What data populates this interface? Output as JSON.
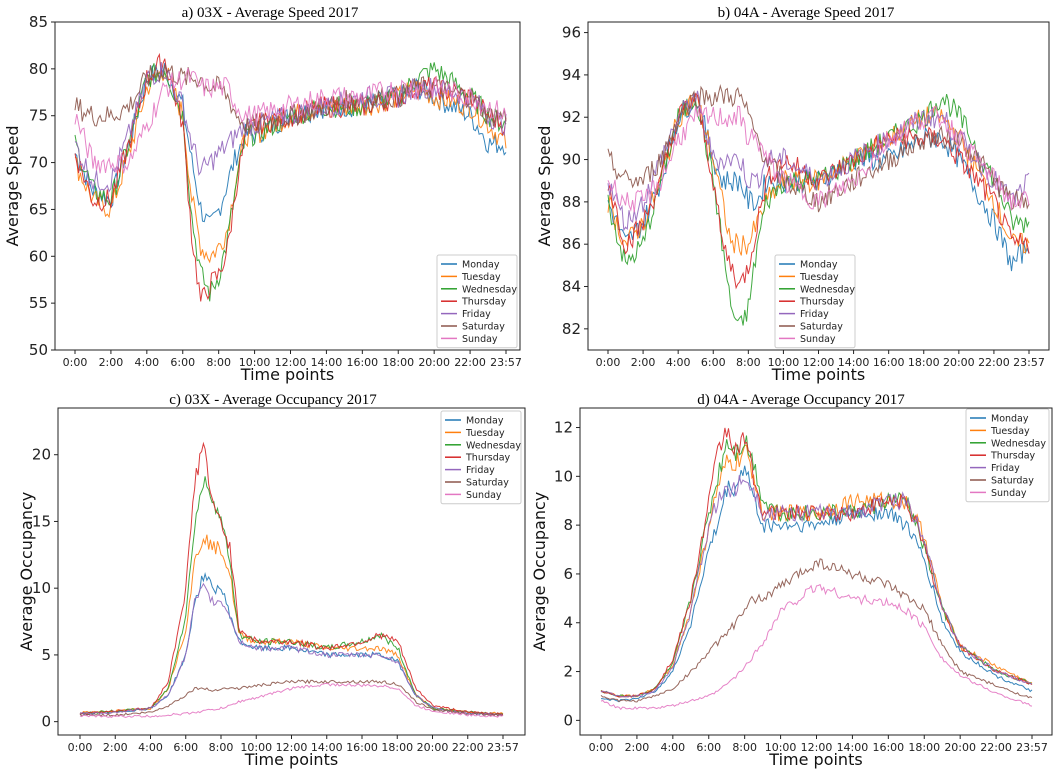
{
  "palette": {
    "Monday": "#1f77b4",
    "Tuesday": "#ff7f0e",
    "Wednesday": "#2ca02c",
    "Thursday": "#d62728",
    "Friday": "#9467bd",
    "Saturday": "#8c564b",
    "Sunday": "#e377c2"
  },
  "chart_data": [
    {
      "id": "a",
      "type": "line",
      "title": "a) 03X - Average Speed 2017",
      "xlabel": "Time points",
      "ylabel": "Average Speed",
      "xticks": [
        "0:00",
        "2:00",
        "4:00",
        "6:00",
        "8:00",
        "10:00",
        "12:00",
        "14:00",
        "16:00",
        "18:00",
        "20:00",
        "22:00",
        "23:57"
      ],
      "yticks": [
        50,
        55,
        60,
        65,
        70,
        75,
        80,
        85
      ],
      "ylim": [
        50,
        85
      ],
      "legend_position": "lower-right",
      "series_hours": [
        0,
        1,
        2,
        3,
        4,
        5,
        6,
        6.5,
        7,
        7.5,
        8,
        8.5,
        9,
        9.5,
        10,
        12,
        14,
        16,
        18,
        19,
        20,
        22,
        23,
        23.95
      ],
      "series": [
        {
          "name": "Monday",
          "values": [
            71,
            67,
            66,
            72,
            79,
            80,
            76,
            70,
            65,
            63,
            65,
            68,
            71,
            73,
            73,
            75,
            76,
            76,
            77,
            78,
            77,
            75,
            72,
            72
          ]
        },
        {
          "name": "Tuesday",
          "values": [
            70,
            66,
            65,
            71,
            78,
            80,
            75,
            66,
            61,
            60,
            61,
            63,
            69,
            73,
            73,
            75,
            76,
            76,
            77,
            78,
            77,
            76,
            74,
            72
          ]
        },
        {
          "name": "Wednesday",
          "values": [
            72,
            67,
            66,
            72,
            79,
            80,
            75,
            64,
            58,
            56,
            58,
            62,
            68,
            73,
            73,
            75,
            76,
            76,
            77,
            79,
            80,
            77,
            75,
            74
          ]
        },
        {
          "name": "Thursday",
          "values": [
            71,
            66,
            66,
            72,
            79,
            81,
            74,
            62,
            55,
            57,
            58,
            61,
            68,
            73,
            74,
            75,
            76,
            76,
            77,
            78,
            78,
            77,
            75,
            74
          ]
        },
        {
          "name": "Friday",
          "values": [
            72,
            68,
            68,
            73,
            79,
            80,
            76,
            72,
            69,
            70,
            71,
            72,
            73,
            74,
            74,
            75,
            76,
            77,
            77,
            78,
            78,
            77,
            75,
            74
          ]
        },
        {
          "name": "Saturday",
          "values": [
            76,
            75,
            75,
            76,
            79,
            80,
            79,
            79,
            79,
            78,
            78,
            77,
            75,
            74,
            74,
            75,
            76,
            77,
            77,
            78,
            78,
            77,
            75,
            75
          ]
        },
        {
          "name": "Sunday",
          "values": [
            75,
            70,
            70,
            70,
            74,
            78,
            79,
            79,
            78,
            78,
            78,
            78,
            76,
            75,
            75,
            76,
            77,
            77,
            78,
            78,
            78,
            77,
            76,
            75
          ]
        }
      ]
    },
    {
      "id": "b",
      "type": "line",
      "title": "b) 04A - Average Speed 2017",
      "xlabel": "Time points",
      "ylabel": "Average Speed",
      "xticks": [
        "0:00",
        "2:00",
        "4:00",
        "6:00",
        "8:00",
        "10:00",
        "12:00",
        "14:00",
        "16:00",
        "18:00",
        "20:00",
        "22:00",
        "23:57"
      ],
      "yticks": [
        82,
        84,
        86,
        88,
        90,
        92,
        94,
        96
      ],
      "ylim": [
        81,
        96.5
      ],
      "legend_position": "lower-center",
      "series_hours": [
        0,
        1,
        2,
        3,
        4,
        5,
        6,
        6.5,
        7,
        7.5,
        8,
        8.5,
        9,
        10,
        12,
        14,
        16,
        18,
        19,
        20,
        22,
        23,
        23.95
      ],
      "series": [
        {
          "name": "Monday",
          "values": [
            88,
            86,
            87,
            89,
            92,
            93,
            90,
            89,
            89,
            89,
            88,
            88,
            89,
            89,
            89,
            90,
            90,
            91,
            91,
            90,
            87,
            85,
            86
          ]
        },
        {
          "name": "Tuesday",
          "values": [
            88,
            86,
            87,
            89,
            92,
            93,
            90,
            88,
            86,
            86,
            86,
            87,
            88,
            89,
            89,
            90,
            91,
            92,
            92,
            91,
            88,
            86,
            86
          ]
        },
        {
          "name": "Wednesday",
          "values": [
            88,
            85,
            86,
            89,
            92,
            93,
            89,
            86,
            83,
            82,
            83,
            86,
            88,
            89,
            89,
            90,
            91,
            92,
            93,
            92,
            89,
            87,
            87
          ]
        },
        {
          "name": "Thursday",
          "values": [
            89,
            86,
            87,
            89,
            92,
            93,
            89,
            86,
            85,
            84,
            85,
            87,
            89,
            90,
            89,
            90,
            91,
            91,
            91,
            90,
            88,
            86,
            86
          ]
        },
        {
          "name": "Friday",
          "values": [
            89,
            87,
            88,
            90,
            92,
            93,
            90,
            90,
            90,
            90,
            89,
            89,
            90,
            90,
            89,
            90,
            91,
            92,
            92,
            91,
            89,
            88,
            89
          ]
        },
        {
          "name": "Saturday",
          "values": [
            90,
            89,
            89,
            90,
            92,
            93,
            93,
            93,
            93,
            93,
            92,
            91,
            90,
            89,
            88,
            89,
            90,
            91,
            91,
            91,
            89,
            88,
            88
          ]
        },
        {
          "name": "Sunday",
          "values": [
            89,
            88,
            88,
            89,
            91,
            92,
            92,
            92,
            92,
            92,
            91,
            91,
            90,
            89,
            88,
            89,
            91,
            92,
            92,
            91,
            89,
            88,
            88
          ]
        }
      ]
    },
    {
      "id": "c",
      "type": "line",
      "title": "c) 03X - Average Occupancy 2017",
      "xlabel": "Time points",
      "ylabel": "Average Occupancy",
      "xticks": [
        "0:00",
        "2:00",
        "4:00",
        "6:00",
        "8:00",
        "10:00",
        "12:00",
        "14:00",
        "16:00",
        "18:00",
        "20:00",
        "22:00",
        "23:57"
      ],
      "yticks": [
        0,
        5,
        10,
        15,
        20
      ],
      "ylim": [
        -1,
        23.5
      ],
      "legend_position": "upper-right",
      "series_hours": [
        0,
        2,
        4,
        5,
        6,
        6.5,
        7,
        7.5,
        8,
        8.5,
        9,
        10,
        12,
        14,
        16,
        17,
        18,
        19,
        20,
        22,
        23.95
      ],
      "series": [
        {
          "name": "Monday",
          "values": [
            0.6,
            0.7,
            1,
            2,
            5,
            9,
            11,
            10,
            10,
            8,
            6,
            5.5,
            5.5,
            5,
            5,
            5,
            4.5,
            2,
            1,
            0.6,
            0.5
          ]
        },
        {
          "name": "Tuesday",
          "values": [
            0.7,
            0.8,
            1,
            2.5,
            7,
            12,
            14,
            13,
            13,
            11,
            6.5,
            6,
            6,
            5.5,
            5.5,
            5.5,
            5,
            2,
            1,
            0.7,
            0.6
          ]
        },
        {
          "name": "Wednesday",
          "values": [
            0.6,
            0.8,
            1,
            2.5,
            8,
            15,
            18,
            17,
            15,
            12,
            6.5,
            6,
            6,
            5.5,
            6,
            6.5,
            5.5,
            2,
            1,
            0.7,
            0.6
          ]
        },
        {
          "name": "Thursday",
          "values": [
            0.6,
            0.8,
            1,
            3,
            10,
            18,
            21,
            16,
            15,
            13,
            7,
            6,
            6,
            5.5,
            6,
            6.5,
            6,
            2.5,
            1.2,
            0.7,
            0.6
          ]
        },
        {
          "name": "Friday",
          "values": [
            0.6,
            0.7,
            1,
            2,
            5,
            9,
            10,
            9,
            9,
            8,
            6,
            5.5,
            5.5,
            5,
            5,
            5,
            4.5,
            2,
            1,
            0.6,
            0.5
          ]
        },
        {
          "name": "Saturday",
          "values": [
            0.5,
            0.5,
            0.7,
            1.2,
            2,
            2.5,
            2.5,
            2.3,
            2.5,
            2.5,
            2.5,
            2.7,
            3,
            3,
            3,
            3,
            2.8,
            1.5,
            0.9,
            0.6,
            0.5
          ]
        },
        {
          "name": "Sunday",
          "values": [
            0.4,
            0.4,
            0.4,
            0.5,
            0.6,
            0.7,
            0.8,
            0.9,
            1,
            1.2,
            1.5,
            1.8,
            2.5,
            2.8,
            2.7,
            2.7,
            2.5,
            1.2,
            0.8,
            0.5,
            0.4
          ]
        }
      ]
    },
    {
      "id": "d",
      "type": "line",
      "title": "d) 04A - Average Occupancy 2017",
      "xlabel": "Time points",
      "ylabel": "Average Occupancy",
      "xticks": [
        "0:00",
        "2:00",
        "4:00",
        "6:00",
        "8:00",
        "10:00",
        "12:00",
        "14:00",
        "16:00",
        "18:00",
        "20:00",
        "22:00",
        "23:57"
      ],
      "yticks": [
        0,
        2,
        4,
        6,
        8,
        10,
        12
      ],
      "ylim": [
        -0.6,
        12.8
      ],
      "legend_position": "upper-right",
      "series_hours": [
        0,
        1,
        2,
        3,
        4,
        5,
        6,
        6.5,
        7,
        7.5,
        8,
        8.5,
        9,
        10,
        12,
        14,
        16,
        17,
        18,
        19,
        20,
        22,
        23.95
      ],
      "series": [
        {
          "name": "Monday",
          "values": [
            0.9,
            0.8,
            0.9,
            1.2,
            2,
            4,
            7,
            8,
            9.5,
            9.5,
            10.5,
            9,
            8,
            8,
            8,
            8.5,
            8.5,
            8,
            6.5,
            4,
            2.8,
            1.8,
            1.2
          ]
        },
        {
          "name": "Tuesday",
          "values": [
            1.2,
            1,
            1,
            1.3,
            2.3,
            4.5,
            8,
            9.5,
            10.5,
            10.5,
            11,
            10,
            8.5,
            8.5,
            8.5,
            9,
            9,
            9,
            7.5,
            4.5,
            3,
            2.2,
            1.5
          ]
        },
        {
          "name": "Wednesday",
          "values": [
            1.2,
            1,
            1,
            1.3,
            2.3,
            5,
            8.5,
            10,
            11.5,
            11,
            11.5,
            10.5,
            9,
            8.5,
            8.5,
            8.5,
            9,
            9,
            7,
            4.5,
            3,
            2,
            1.5
          ]
        },
        {
          "name": "Thursday",
          "values": [
            1.2,
            1,
            1,
            1.3,
            2.5,
            5,
            9,
            11,
            12,
            11,
            11.5,
            10,
            8.5,
            8.5,
            8.5,
            8.5,
            9,
            9,
            7,
            4.5,
            3,
            2,
            1.5
          ]
        },
        {
          "name": "Friday",
          "values": [
            1.2,
            1,
            1,
            1.2,
            2.2,
            4.5,
            8,
            9,
            9.5,
            9.5,
            10,
            9.5,
            8.5,
            8.5,
            8.5,
            8.5,
            9,
            9,
            7.5,
            4.5,
            3,
            2,
            1.5
          ]
        },
        {
          "name": "Saturday",
          "values": [
            1,
            0.8,
            0.8,
            1,
            1.3,
            2,
            2.8,
            3.2,
            3.6,
            4,
            4.5,
            5,
            5,
            5.5,
            6.5,
            6,
            5.5,
            5,
            4.5,
            3,
            2,
            1.4,
            0.9
          ]
        },
        {
          "name": "Sunday",
          "values": [
            0.8,
            0.5,
            0.5,
            0.5,
            0.6,
            0.8,
            1,
            1.2,
            1.5,
            1.8,
            2.2,
            2.7,
            3.2,
            4.5,
            5.5,
            5,
            4.8,
            4.5,
            3.8,
            2.5,
            1.8,
            1.1,
            0.6
          ]
        }
      ]
    }
  ]
}
